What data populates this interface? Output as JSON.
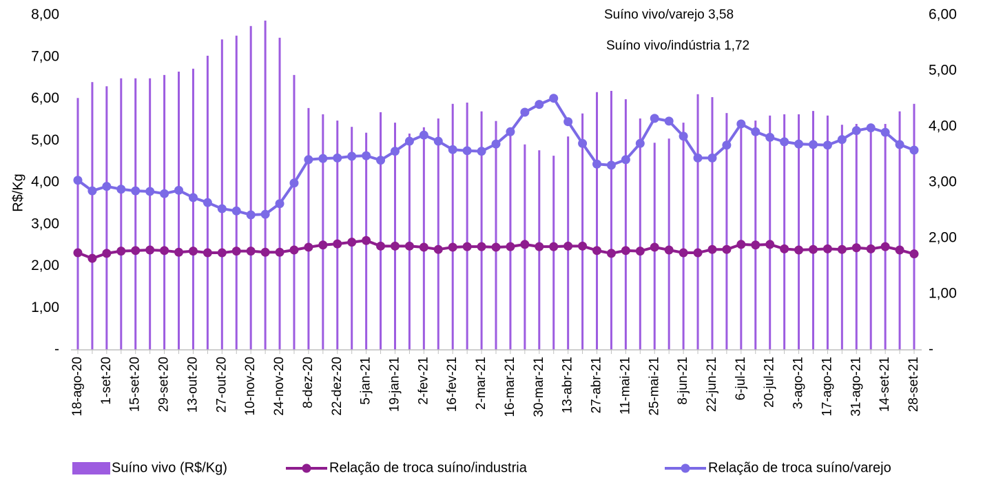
{
  "chart_data": {
    "type": "bar",
    "y_label": "R$/Kg",
    "annotations": [
      "Suíno vivo/varejo 3,58",
      "Suíno vivo/indústria 1,72"
    ],
    "categories": [
      "18-ago-20",
      null,
      "1-set-20",
      null,
      "15-set-20",
      null,
      "29-set-20",
      null,
      "13-out-20",
      null,
      "27-out-20",
      null,
      "10-nov-20",
      null,
      "24-nov-20",
      null,
      "8-dez-20",
      null,
      "22-dez-20",
      null,
      "5-jan-21",
      null,
      "19-jan-21",
      null,
      "2-fev-21",
      null,
      "16-fev-21",
      null,
      "2-mar-21",
      null,
      "16-mar-21",
      null,
      "30-mar-21",
      null,
      "13-abr-21",
      null,
      "27-abr-21",
      null,
      "11-mai-21",
      null,
      "25-mai-21",
      null,
      "8-jun-21",
      null,
      "22-jun-21",
      null,
      "6-jul-21",
      null,
      "20-jul-21",
      null,
      "3-ago-21",
      null,
      "17-ago-21",
      null,
      "31-ago-21",
      null,
      "14-set-21",
      null,
      "28-set-21"
    ],
    "series": [
      {
        "name": "Suíno vivo (R$/Kg)",
        "type": "bar",
        "color": "#9d5ce0",
        "values": [
          6.02,
          6.4,
          6.3,
          6.49,
          6.49,
          6.49,
          6.57,
          6.65,
          6.72,
          7.03,
          7.42,
          7.51,
          7.74,
          7.87,
          7.46,
          6.57,
          5.78,
          5.63,
          5.48,
          5.33,
          5.19,
          5.68,
          5.43,
          5.17,
          5.32,
          5.53,
          5.88,
          5.91,
          5.7,
          5.47,
          5.27,
          4.91,
          4.77,
          4.64,
          5.1,
          5.65,
          6.16,
          6.19,
          5.99,
          5.53,
          4.95,
          5.05,
          5.43,
          6.11,
          6.04,
          5.66,
          5.48,
          5.48,
          5.6,
          5.63,
          5.63,
          5.71,
          5.6,
          5.38,
          5.4,
          5.4,
          5.4,
          5.7,
          5.88
        ]
      },
      {
        "name": "Relação de troca suíno/industria",
        "type": "line",
        "axis": "y2",
        "color": "#8e1d8e",
        "values": [
          1.74,
          1.64,
          1.73,
          1.77,
          1.78,
          1.79,
          1.78,
          1.75,
          1.77,
          1.74,
          1.74,
          1.77,
          1.77,
          1.75,
          1.75,
          1.79,
          1.84,
          1.88,
          1.9,
          1.93,
          1.96,
          1.86,
          1.86,
          1.86,
          1.84,
          1.8,
          1.84,
          1.85,
          1.85,
          1.84,
          1.85,
          1.89,
          1.85,
          1.85,
          1.86,
          1.86,
          1.78,
          1.73,
          1.78,
          1.77,
          1.84,
          1.79,
          1.74,
          1.74,
          1.8,
          1.8,
          1.89,
          1.88,
          1.89,
          1.81,
          1.79,
          1.8,
          1.81,
          1.8,
          1.83,
          1.81,
          1.85,
          1.79,
          1.72
        ]
      },
      {
        "name": "Relação de troca suíno/varejo",
        "type": "line",
        "axis": "y2",
        "color": "#7b6ae6",
        "values": [
          3.04,
          2.85,
          2.93,
          2.88,
          2.85,
          2.84,
          2.8,
          2.86,
          2.73,
          2.64,
          2.53,
          2.49,
          2.42,
          2.43,
          2.62,
          2.99,
          3.41,
          3.43,
          3.44,
          3.47,
          3.48,
          3.4,
          3.56,
          3.74,
          3.85,
          3.74,
          3.59,
          3.57,
          3.56,
          3.69,
          3.91,
          4.26,
          4.4,
          4.51,
          4.09,
          3.7,
          3.33,
          3.31,
          3.41,
          3.7,
          4.15,
          4.1,
          3.83,
          3.44,
          3.44,
          3.67,
          4.05,
          3.91,
          3.81,
          3.73,
          3.69,
          3.68,
          3.67,
          3.77,
          3.93,
          3.98,
          3.9,
          3.68,
          3.58
        ]
      }
    ],
    "ylim": [
      0,
      8
    ],
    "yticks": [
      {
        "value": 0,
        "label": "-"
      },
      {
        "value": 1,
        "label": "1,00"
      },
      {
        "value": 2,
        "label": "2,00"
      },
      {
        "value": 3,
        "label": "3,00"
      },
      {
        "value": 4,
        "label": "4,00"
      },
      {
        "value": 5,
        "label": "5,00"
      },
      {
        "value": 6,
        "label": "6,00"
      },
      {
        "value": 7,
        "label": "7,00"
      },
      {
        "value": 8,
        "label": "8,00"
      }
    ],
    "y2lim": [
      0,
      6
    ],
    "y2ticks": [
      {
        "value": 0,
        "label": "-"
      },
      {
        "value": 1,
        "label": "1,00"
      },
      {
        "value": 2,
        "label": "2,00"
      },
      {
        "value": 3,
        "label": "3,00"
      },
      {
        "value": 4,
        "label": "4,00"
      },
      {
        "value": 5,
        "label": "5,00"
      },
      {
        "value": 6,
        "label": "6,00"
      }
    ],
    "legend": "bottom"
  }
}
